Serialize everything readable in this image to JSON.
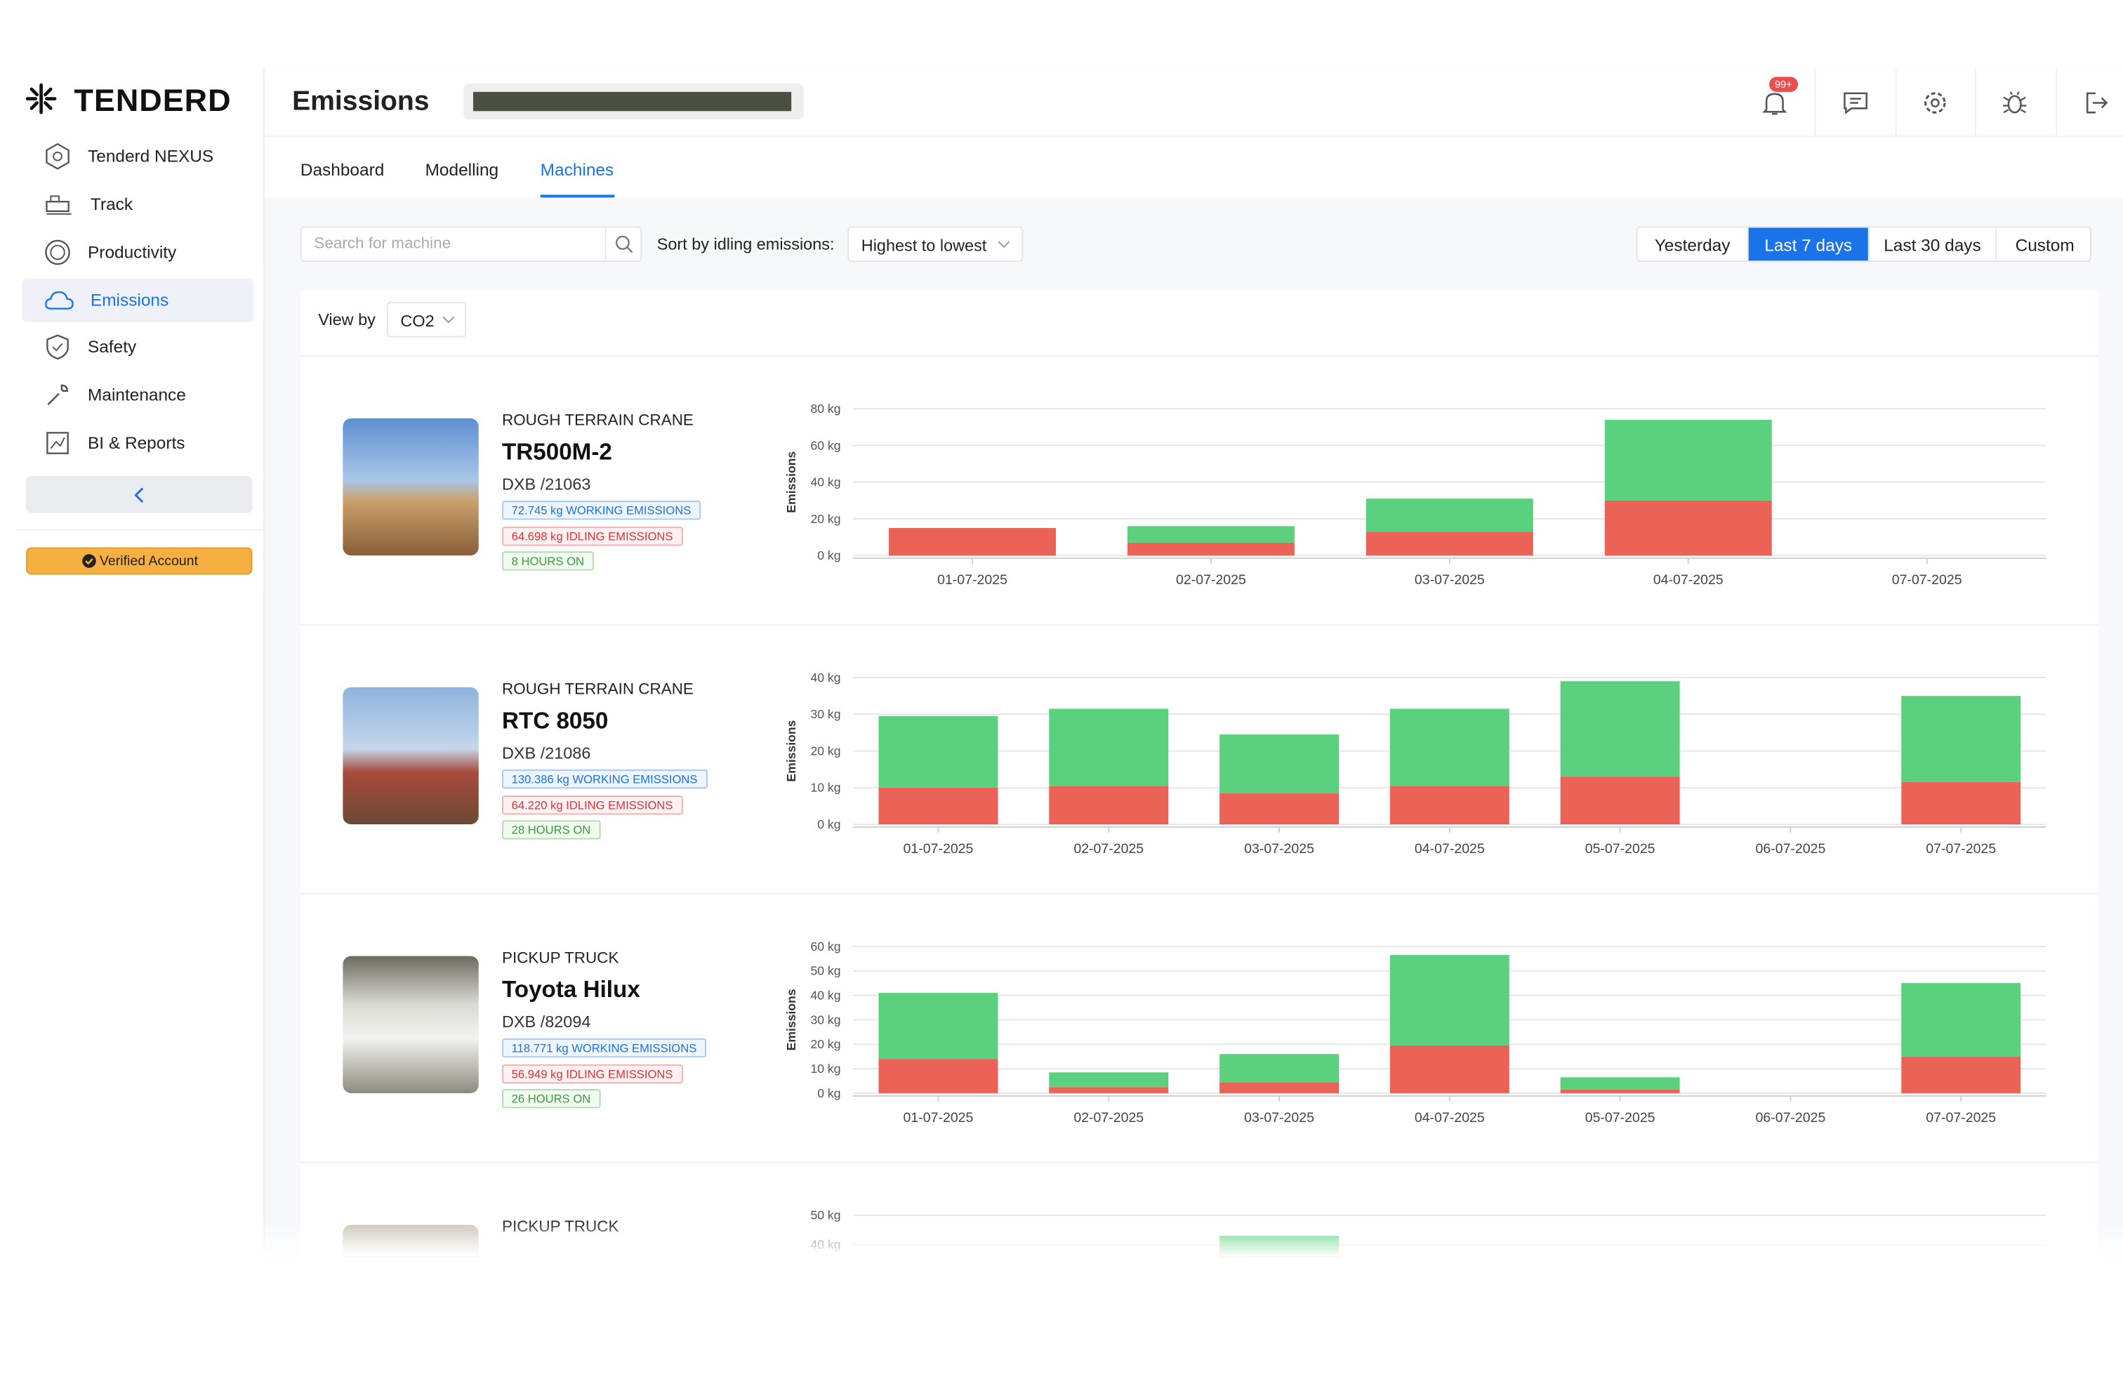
{
  "brand": "TENDERD",
  "nav": [
    "Tenderd NEXUS",
    "Track",
    "Productivity",
    "Emissions",
    "Safety",
    "Maintenance",
    "BI & Reports"
  ],
  "verified": "Verified Account",
  "page_title": "Emissions",
  "notification_badge": "99+",
  "tabs": [
    "Dashboard",
    "Modelling",
    "Machines"
  ],
  "search_placeholder": "Search for machine",
  "sort_label": "Sort by idling emissions:",
  "sort_value": "Highest to lowest",
  "ranges": [
    "Yesterday",
    "Last 7 days",
    "Last 30 days",
    "Custom"
  ],
  "view_by_label": "View by",
  "view_by_value": "CO2",
  "machines": [
    {
      "category": "ROUGH TERRAIN CRANE",
      "name": "TR500M-2",
      "code": "DXB /21063",
      "working": "72.745 kg WORKING EMISSIONS",
      "idling": "64.698 kg IDLING EMISSIONS",
      "hours": "8 HOURS ON",
      "chart": {
        "type": "bar",
        "stacked": true,
        "ylabel": "Emissions",
        "categories": [
          "01-07-2025",
          "02-07-2025",
          "03-07-2025",
          "04-07-2025",
          "07-07-2025"
        ],
        "ylim": [
          0,
          80
        ],
        "yticks": [
          {
            "value": 0,
            "label": "0 kg"
          },
          {
            "value": 20,
            "label": "20 kg"
          },
          {
            "value": 40,
            "label": "40 kg"
          },
          {
            "value": 60,
            "label": "60 kg"
          },
          {
            "value": 80,
            "label": "80 kg"
          }
        ],
        "series": [
          {
            "color": "#eb6357",
            "values": [
              15,
              7,
              13,
              30,
              0
            ]
          },
          {
            "color": "#5bd07f",
            "values": [
              0,
              9,
              18,
              44,
              0
            ]
          }
        ]
      }
    },
    {
      "category": "ROUGH TERRAIN CRANE",
      "name": "RTC 8050",
      "code": "DXB /21086",
      "working": "130.386 kg WORKING EMISSIONS",
      "idling": "64.220 kg IDLING EMISSIONS",
      "hours": "28 HOURS ON",
      "chart": {
        "type": "bar",
        "stacked": true,
        "ylabel": "Emissions",
        "categories": [
          "01-07-2025",
          "02-07-2025",
          "03-07-2025",
          "04-07-2025",
          "05-07-2025",
          "06-07-2025",
          "07-07-2025"
        ],
        "ylim": [
          0,
          40
        ],
        "yticks": [
          {
            "value": 0,
            "label": "0 kg"
          },
          {
            "value": 10,
            "label": "10 kg"
          },
          {
            "value": 20,
            "label": "20 kg"
          },
          {
            "value": 30,
            "label": "30 kg"
          },
          {
            "value": 40,
            "label": "40 kg"
          }
        ],
        "series": [
          {
            "color": "#eb6357",
            "values": [
              10,
              10.5,
              8.5,
              10.5,
              13,
              0,
              11.5
            ]
          },
          {
            "color": "#5bd07f",
            "values": [
              19.5,
              21,
              16,
              21,
              26,
              0,
              23.5
            ]
          }
        ]
      }
    },
    {
      "category": "PICKUP TRUCK",
      "name": "Toyota Hilux",
      "code": "DXB /82094",
      "working": "118.771 kg WORKING EMISSIONS",
      "idling": "56.949 kg IDLING EMISSIONS",
      "hours": "26 HOURS ON",
      "chart": {
        "type": "bar",
        "stacked": true,
        "ylabel": "Emissions",
        "categories": [
          "01-07-2025",
          "02-07-2025",
          "03-07-2025",
          "04-07-2025",
          "05-07-2025",
          "06-07-2025",
          "07-07-2025"
        ],
        "ylim": [
          0,
          60
        ],
        "yticks": [
          {
            "value": 0,
            "label": "0 kg"
          },
          {
            "value": 10,
            "label": "10 kg"
          },
          {
            "value": 20,
            "label": "20 kg"
          },
          {
            "value": 30,
            "label": "30 kg"
          },
          {
            "value": 40,
            "label": "40 kg"
          },
          {
            "value": 50,
            "label": "50 kg"
          },
          {
            "value": 60,
            "label": "60 kg"
          }
        ],
        "series": [
          {
            "color": "#eb6357",
            "values": [
              14,
              2.5,
              4.5,
              19.5,
              1.5,
              0,
              15
            ]
          },
          {
            "color": "#5bd07f",
            "values": [
              27,
              6,
              11.5,
              37,
              5,
              0,
              30
            ]
          }
        ]
      }
    },
    {
      "category": "PICKUP TRUCK",
      "chart": {
        "type": "bar",
        "stacked": true,
        "ylim": [
          0,
          50
        ],
        "yticks": [
          {
            "value": 40,
            "label": "40 kg"
          },
          {
            "value": 50,
            "label": "50 kg"
          }
        ],
        "series": [
          {
            "color": "#5bd07f",
            "values": [
              null,
              null,
              43,
              null,
              null,
              null,
              null
            ]
          }
        ]
      }
    }
  ]
}
